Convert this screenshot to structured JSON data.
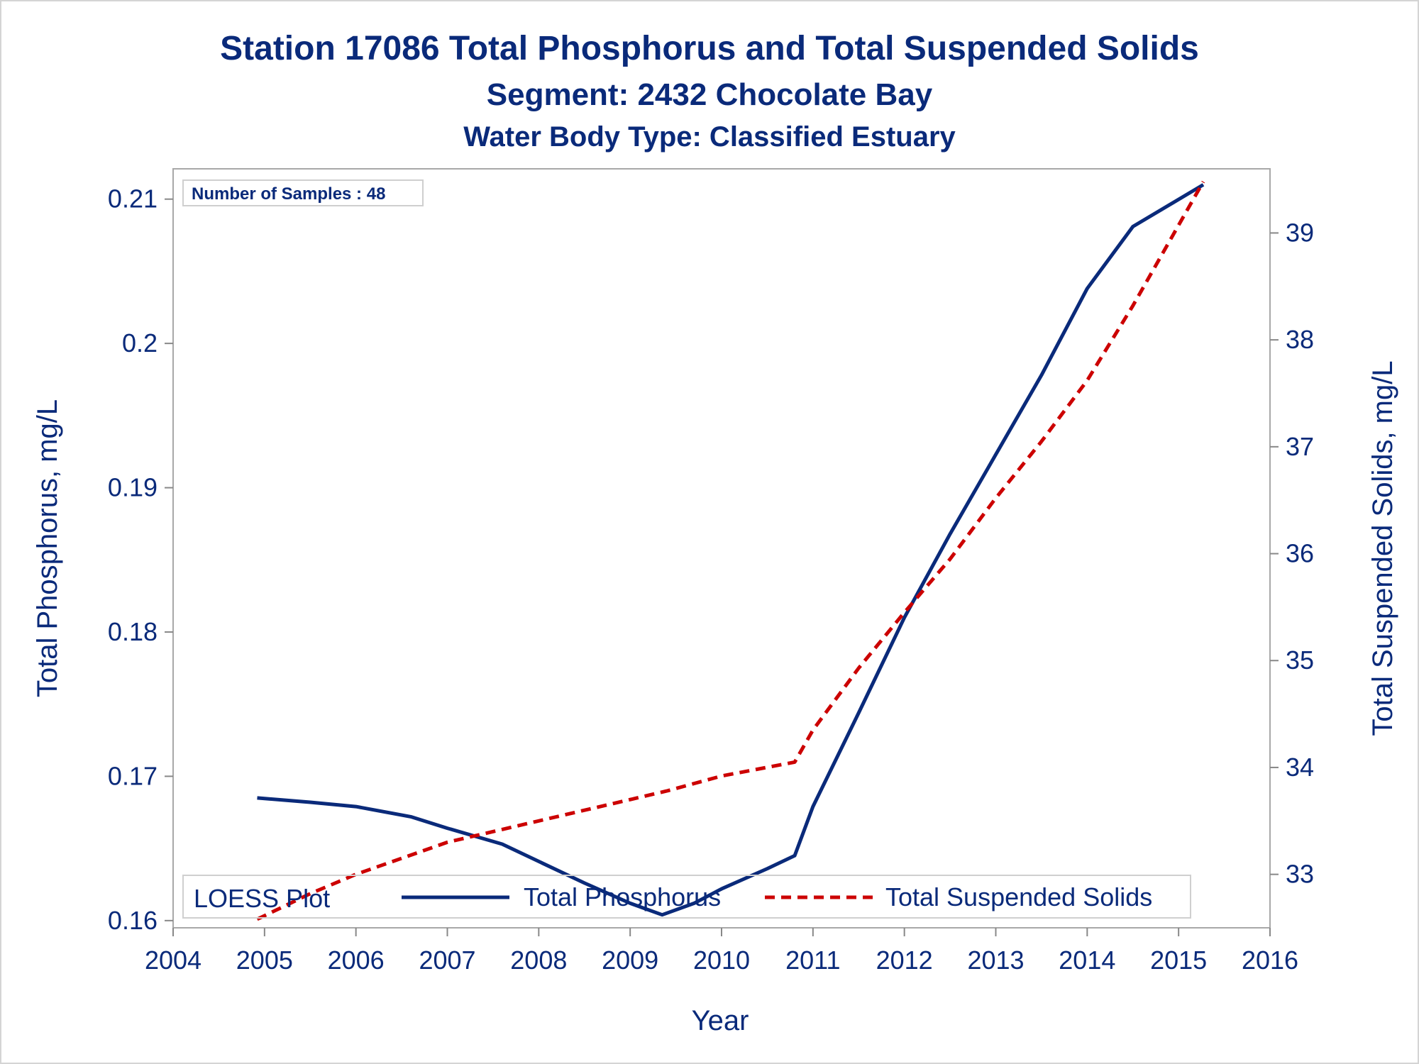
{
  "chart_data": {
    "type": "line",
    "title": "Station 17086  Total Phosphorus and Total Suspended Solids",
    "subtitle": "Segment: 2432  Chocolate Bay",
    "subtitle2": "Water Body Type: Classified Estuary",
    "xlabel": "Year",
    "ylabel_left": "Total Phosphorus, mg/L",
    "ylabel_right": "Total Suspended Solids, mg/L",
    "xlim": [
      2004,
      2016
    ],
    "ylim_left": [
      0.1595,
      0.2121
    ],
    "ylim_right": [
      32.5,
      39.6
    ],
    "x_ticks": [
      2004,
      2005,
      2006,
      2007,
      2008,
      2009,
      2010,
      2011,
      2012,
      2013,
      2014,
      2015,
      2016
    ],
    "y_left_ticks": [
      0.16,
      0.17,
      0.18,
      0.19,
      0.2,
      0.21
    ],
    "y_left_tick_labels": [
      "0.16",
      "0.17",
      "0.18",
      "0.19",
      "0.2",
      "0.21"
    ],
    "y_right_ticks": [
      33,
      34,
      35,
      36,
      37,
      38,
      39
    ],
    "annotation": "Number of Samples : 48",
    "legend": {
      "title": "LOESS Plot",
      "placement": "bottom-inside",
      "entries": [
        "Total Phosphorus",
        "Total Suspended Solids"
      ]
    },
    "series": [
      {
        "name": "Total Phosphorus",
        "axis": "left",
        "color": "#0a2a7a",
        "style": "solid",
        "points": [
          [
            2004.92,
            0.1685
          ],
          [
            2005.5,
            0.1682
          ],
          [
            2006.0,
            0.1679
          ],
          [
            2006.6,
            0.1672
          ],
          [
            2007.0,
            0.1664
          ],
          [
            2007.6,
            0.1653
          ],
          [
            2008.0,
            0.1641
          ],
          [
            2008.5,
            0.1626
          ],
          [
            2009.0,
            0.1612
          ],
          [
            2009.35,
            0.1604
          ],
          [
            2009.7,
            0.1612
          ],
          [
            2010.0,
            0.1622
          ],
          [
            2010.5,
            0.1636
          ],
          [
            2010.8,
            0.1645
          ],
          [
            2011.0,
            0.1679
          ],
          [
            2011.5,
            0.1744
          ],
          [
            2012.0,
            0.181
          ],
          [
            2012.5,
            0.1868
          ],
          [
            2013.0,
            0.1923
          ],
          [
            2013.5,
            0.1978
          ],
          [
            2014.0,
            0.2038
          ],
          [
            2014.5,
            0.2081
          ],
          [
            2015.27,
            0.211
          ]
        ]
      },
      {
        "name": "Total Suspended Solids",
        "axis": "right",
        "color": "#cc0000",
        "style": "dashed",
        "points": [
          [
            2004.92,
            32.58
          ],
          [
            2005.5,
            32.82
          ],
          [
            2006.0,
            33.0
          ],
          [
            2007.0,
            33.3
          ],
          [
            2008.0,
            33.5
          ],
          [
            2009.0,
            33.7
          ],
          [
            2009.4,
            33.78
          ],
          [
            2010.0,
            33.92
          ],
          [
            2010.8,
            34.05
          ],
          [
            2011.0,
            34.35
          ],
          [
            2011.5,
            34.93
          ],
          [
            2012.0,
            35.45
          ],
          [
            2012.5,
            35.95
          ],
          [
            2013.0,
            36.52
          ],
          [
            2013.5,
            37.05
          ],
          [
            2014.0,
            37.62
          ],
          [
            2014.5,
            38.32
          ],
          [
            2015.27,
            39.48
          ]
        ]
      }
    ]
  }
}
